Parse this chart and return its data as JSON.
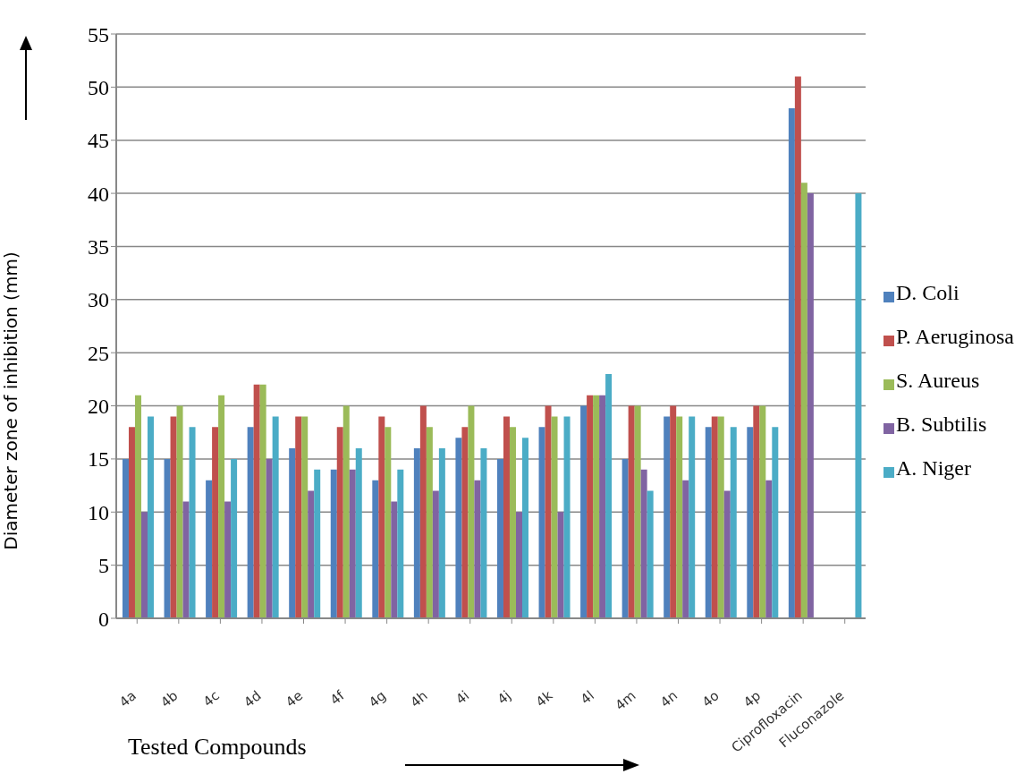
{
  "chart_data": {
    "type": "bar",
    "xlabel": "Tested Compounds",
    "ylabel": "Diameter zone of inhibition (mm)",
    "categories": [
      "4a",
      "4b",
      "4c",
      "4d",
      "4e",
      "4f",
      "4g",
      "4h",
      "4i",
      "4j",
      "4k",
      "4l",
      "4m",
      "4n",
      "4o",
      "4p",
      "Ciprofloxacin",
      "Fluconazole"
    ],
    "series": [
      {
        "name": "D.  Coli",
        "color": "#4f81bd",
        "values": [
          15,
          15,
          13,
          18,
          16,
          14,
          13,
          16,
          17,
          15,
          18,
          20,
          15,
          19,
          18,
          18,
          48,
          null
        ]
      },
      {
        "name": "P. Aeruginosa",
        "color": "#c0504d",
        "values": [
          18,
          19,
          18,
          22,
          19,
          18,
          19,
          20,
          18,
          19,
          20,
          21,
          20,
          20,
          19,
          20,
          51,
          null
        ]
      },
      {
        "name": "S. Aureus",
        "color": "#9bbb59",
        "values": [
          21,
          20,
          21,
          22,
          19,
          20,
          18,
          18,
          20,
          18,
          19,
          21,
          20,
          19,
          19,
          20,
          41,
          null
        ]
      },
      {
        "name": "B. Subtilis",
        "color": "#8064a2",
        "values": [
          10,
          11,
          11,
          15,
          12,
          14,
          11,
          12,
          13,
          10,
          10,
          21,
          14,
          13,
          12,
          13,
          40,
          null
        ]
      },
      {
        "name": "A. Niger",
        "color": "#4bacc6",
        "values": [
          19,
          18,
          15,
          19,
          14,
          16,
          14,
          16,
          16,
          17,
          19,
          23,
          12,
          19,
          18,
          18,
          null,
          40
        ]
      }
    ],
    "ylim": [
      0,
      55
    ],
    "yticks": [
      0,
      5,
      10,
      15,
      20,
      25,
      30,
      35,
      40,
      45,
      50,
      55
    ],
    "grid": "y",
    "legend": "right"
  }
}
